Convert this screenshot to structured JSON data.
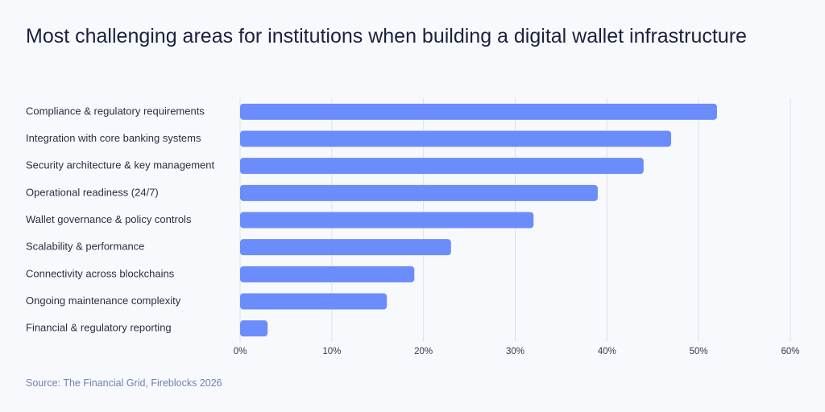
{
  "chart_data": {
    "type": "bar",
    "orientation": "horizontal",
    "title": "Most challenging areas for institutions when building a digital wallet infrastructure",
    "categories": [
      "Compliance & regulatory requirements",
      "Integration with core banking systems",
      "Security architecture & key management",
      "Operational readiness (24/7)",
      "Wallet governance & policy controls",
      "Scalability & performance",
      "Connectivity across blockchains",
      "Ongoing maintenance complexity",
      "Financial & regulatory reporting"
    ],
    "values": [
      52,
      47,
      44,
      39,
      32,
      23,
      19,
      16,
      3
    ],
    "color": "#6b8cfb",
    "xlim": [
      0,
      60
    ],
    "xticks": [
      {
        "value": 0,
        "label": "0%"
      },
      {
        "value": 10,
        "label": "10%"
      },
      {
        "value": 20,
        "label": "20%"
      },
      {
        "value": 30,
        "label": "30%"
      },
      {
        "value": 40,
        "label": "40%"
      },
      {
        "value": 50,
        "label": "50%"
      },
      {
        "value": 60,
        "label": "60%"
      }
    ],
    "grid": true,
    "source": "Source: The Financial Grid, Fireblocks 2026"
  }
}
